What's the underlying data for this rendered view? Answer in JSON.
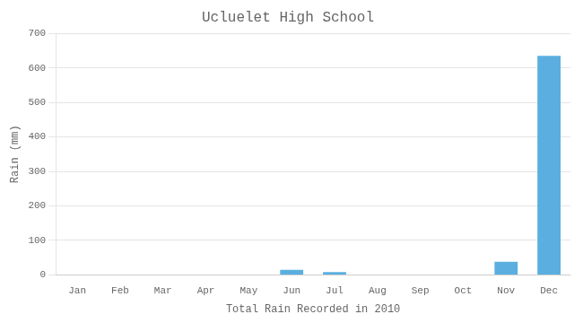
{
  "chart_data": {
    "type": "bar",
    "title": "Ucluelet High School",
    "xlabel": "Total Rain Recorded in 2010",
    "ylabel": "Rain (mm)",
    "categories": [
      "Jan",
      "Feb",
      "Mar",
      "Apr",
      "May",
      "Jun",
      "Jul",
      "Aug",
      "Sep",
      "Oct",
      "Nov",
      "Dec"
    ],
    "values": [
      0,
      0,
      0,
      0,
      0,
      15,
      8,
      0,
      0,
      0,
      38,
      635
    ],
    "color": "#5aafe0",
    "ylim": [
      0,
      700
    ],
    "yticks": [
      0,
      100,
      200,
      300,
      400,
      500,
      600,
      700
    ],
    "grid": true
  }
}
